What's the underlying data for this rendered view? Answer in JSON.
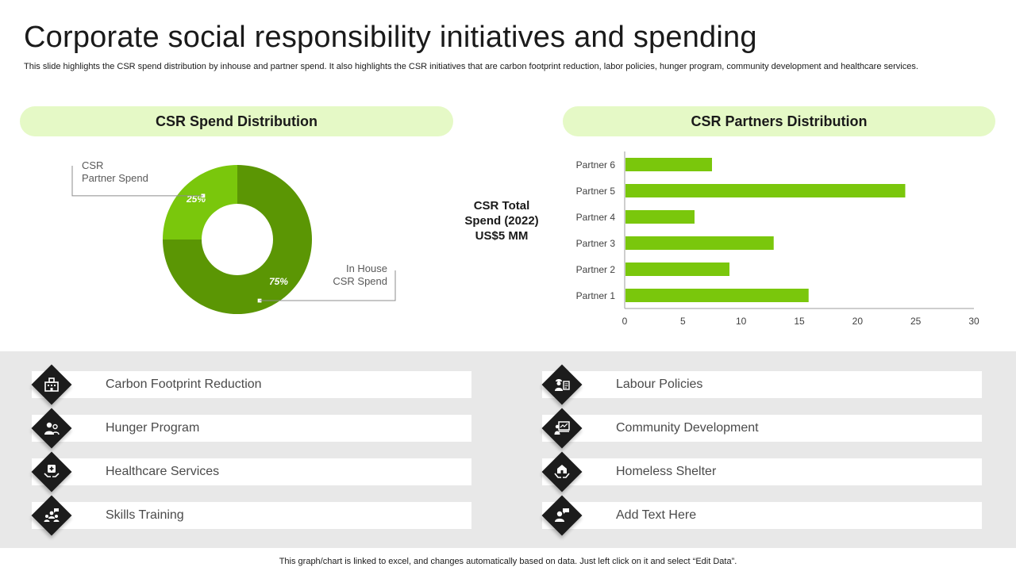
{
  "title": "Corporate social responsibility initiatives and spending",
  "subtitle": "This slide highlights the CSR spend distribution by inhouse and partner spend. It also highlights the CSR initiatives that are carbon footprint reduction, labor policies, hunger program, community development and healthcare services.",
  "sections": {
    "spend": "CSR Spend Distribution",
    "partners": "CSR Partners Distribution"
  },
  "total": {
    "line1": "CSR Total",
    "line2": "Spend (2022)",
    "line3": "US$5 MM"
  },
  "colors": {
    "dark_green": "#5b9604",
    "light_green": "#7ac70c",
    "pill_bg": "#e5f9c6",
    "band_bg": "#e8e8e8",
    "icon_bg": "#1c1c1c"
  },
  "chart_data": [
    {
      "type": "pie",
      "subtype": "donut",
      "slices": [
        {
          "label_line1": "In House",
          "label_line2": "CSR Spend",
          "value": 75,
          "value_label": "75%",
          "color": "#5b9604"
        },
        {
          "label_line1": "CSR",
          "label_line2": "Partner Spend",
          "value": 25,
          "value_label": "25%",
          "color": "#7ac70c"
        }
      ]
    },
    {
      "type": "bar",
      "orientation": "horizontal",
      "categories": [
        "Partner 1",
        "Partner 2",
        "Partner 3",
        "Partner 4",
        "Partner 5",
        "Partner 6"
      ],
      "values": [
        15.8,
        9,
        12.8,
        6,
        24.1,
        7.5
      ],
      "xlim": [
        0,
        30
      ],
      "xticks": [
        0,
        5,
        10,
        15,
        20,
        25,
        30
      ],
      "color": "#7ac70c",
      "grid": false
    }
  ],
  "initiatives": {
    "left": [
      {
        "label": "Carbon Footprint Reduction",
        "icon": "building-icon"
      },
      {
        "label": "Hunger Program",
        "icon": "people-icon"
      },
      {
        "label": "Healthcare Services",
        "icon": "medical-hands-icon"
      },
      {
        "label": "Skills Training",
        "icon": "group-training-icon"
      }
    ],
    "right": [
      {
        "label": "Labour Policies",
        "icon": "worker-document-icon"
      },
      {
        "label": "Community Development",
        "icon": "presentation-icon"
      },
      {
        "label": "Homeless Shelter",
        "icon": "shelter-hands-icon"
      },
      {
        "label": "Add Text Here",
        "icon": "person-chat-icon"
      }
    ]
  },
  "footer": "This graph/chart is linked to excel, and changes automatically based on data. Just left click on it and select “Edit Data”."
}
